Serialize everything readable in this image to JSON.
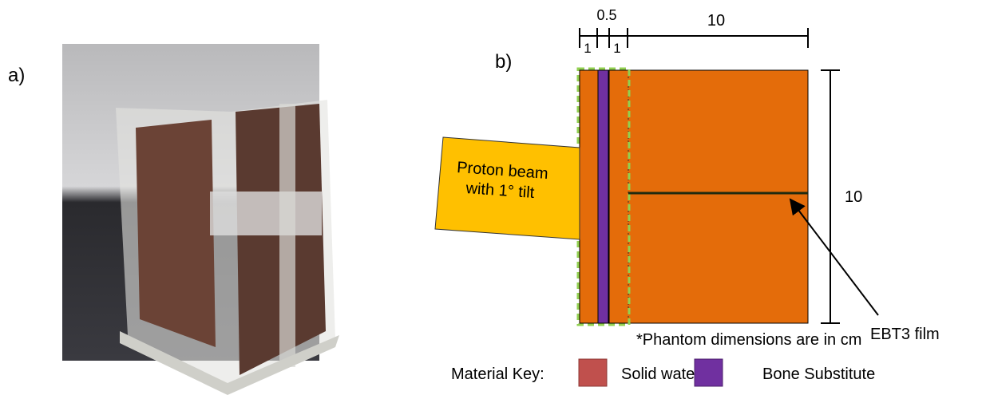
{
  "panel_a": {
    "label": "a)"
  },
  "panel_b": {
    "label": "b)",
    "top_dimensions": {
      "small_gap": "0.5",
      "width": "10",
      "left_slab": "1",
      "right_slab": "1"
    },
    "height_dimension": "10",
    "beam_label": [
      "Proton beam",
      "with 1° tilt"
    ],
    "film_label": "EBT3 film",
    "note": "*Phantom dimensions are in cm",
    "key": {
      "title": "Material Key:",
      "items": [
        "Solid water",
        "Bone Substitute"
      ]
    }
  }
}
